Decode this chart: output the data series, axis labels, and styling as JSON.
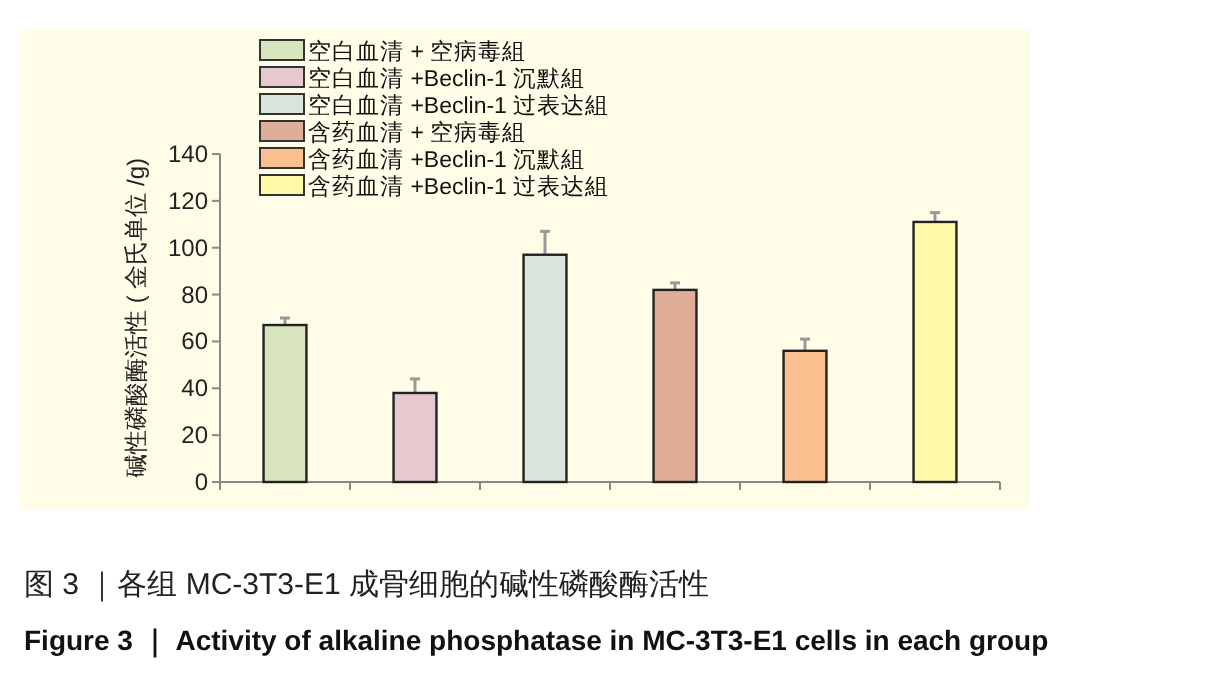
{
  "chart_data": {
    "type": "bar",
    "title": "图 3 ｜各组 MC-3T3-E1 成骨细胞的碱性磷酸酶活性",
    "subtitle": "Figure 3 ｜ Activity of alkaline phosphatase in MC-3T3-E1 cells in each group",
    "ylabel": "碱性磷酸酶活性 ( 金氏单位 /g)",
    "categories": [
      null,
      null,
      null,
      null,
      null,
      null
    ],
    "series": [
      {
        "name": "空白血清 + 空病毒組",
        "color": "#d7e4bd",
        "values": [
          67,
          null,
          null,
          null,
          null,
          null
        ],
        "errors": [
          3,
          null,
          null,
          null,
          null,
          null
        ]
      },
      {
        "name": "空白血清 +Beclin-1 沉默組",
        "color": "#e6c9cf",
        "values": [
          null,
          38,
          null,
          null,
          null,
          null
        ],
        "errors": [
          null,
          6,
          null,
          null,
          null,
          null
        ]
      },
      {
        "name": "空白血清 +Beclin-1 过表达組",
        "color": "#d8e4dc",
        "values": [
          null,
          null,
          97,
          null,
          null,
          null
        ],
        "errors": [
          null,
          null,
          10,
          null,
          null,
          null
        ]
      },
      {
        "name": "含药血清 + 空病毒組",
        "color": "#e0ae98",
        "values": [
          null,
          null,
          null,
          82,
          null,
          null
        ],
        "errors": [
          null,
          null,
          null,
          3,
          null,
          null
        ]
      },
      {
        "name": "含药血清 +Beclin-1 沉默組",
        "color": "#fac08f",
        "values": [
          null,
          null,
          null,
          null,
          56,
          null
        ],
        "errors": [
          null,
          null,
          null,
          null,
          5,
          null
        ]
      },
      {
        "name": "含药血清 +Beclin-1 过表达組",
        "color": "#fffaa8",
        "values": [
          null,
          null,
          null,
          null,
          null,
          111
        ],
        "errors": [
          null,
          null,
          null,
          null,
          null,
          4
        ]
      }
    ],
    "ylim": [
      0,
      140
    ],
    "yticks": [
      0,
      20,
      40,
      60,
      80,
      100,
      120,
      140
    ],
    "legend": "top left",
    "grid": false
  }
}
